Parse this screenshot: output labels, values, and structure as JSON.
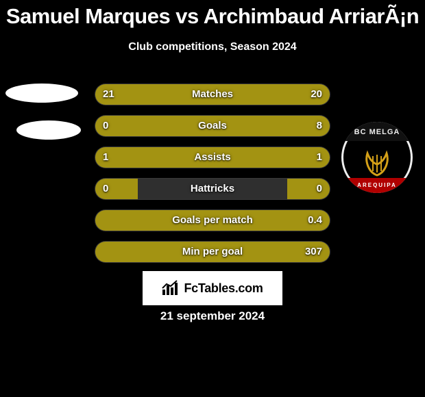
{
  "title": "Samuel Marques vs Archimbaud ArriarÃ¡n",
  "subtitle": "Club competitions, Season 2024",
  "date_text": "21 september 2024",
  "brand": {
    "text": "FcTables.com"
  },
  "club_badge": {
    "top_text": "BC MELGA",
    "bottom_text": "AREQUIPA"
  },
  "colors": {
    "left_fill": "#a39312",
    "right_fill": "#a39312",
    "track": "#2f2f2f",
    "text": "#ffffff"
  },
  "fonts": {
    "title_size": 31,
    "subtitle_size": 16,
    "row_value_size": 15,
    "row_label_size": 15,
    "date_size": 17
  },
  "rows": [
    {
      "label": "Matches",
      "left": "21",
      "right": "20",
      "left_pct": 51,
      "right_pct": 49
    },
    {
      "label": "Goals",
      "left": "0",
      "right": "8",
      "left_pct": 18,
      "right_pct": 82
    },
    {
      "label": "Assists",
      "left": "1",
      "right": "1",
      "left_pct": 50,
      "right_pct": 50
    },
    {
      "label": "Hattricks",
      "left": "0",
      "right": "0",
      "left_pct": 18,
      "right_pct": 18
    },
    {
      "label": "Goals per match",
      "left": "",
      "right": "0.4",
      "left_pct": 18,
      "right_pct": 82
    },
    {
      "label": "Min per goal",
      "left": "",
      "right": "307",
      "left_pct": 3,
      "right_pct": 100
    }
  ]
}
